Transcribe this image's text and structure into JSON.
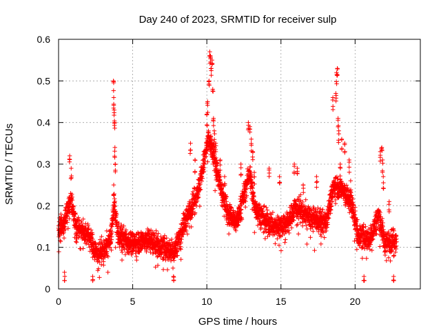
{
  "chart_data": {
    "type": "scatter",
    "title": "Day 240 of 2023, SRMTID for receiver sulp",
    "xlabel": "GPS time / hours",
    "ylabel": "SRMTID / TECUs",
    "xlim": [
      0,
      24.4
    ],
    "ylim": [
      0,
      0.6
    ],
    "xticks": [
      0,
      5,
      10,
      15,
      20
    ],
    "xtick_labels": [
      "0",
      "5",
      "10",
      "15",
      "20"
    ],
    "yticks": [
      0,
      0.1,
      0.2,
      0.3,
      0.4,
      0.5,
      0.6
    ],
    "ytick_labels": [
      "0",
      "0.1",
      "0.2",
      "0.3",
      "0.4",
      "0.5",
      "0.6"
    ],
    "grid": true,
    "marker": "+",
    "color": "#ff0000",
    "series": [
      {
        "name": "SRMTID",
        "envelope": [
          [
            0.0,
            0.14
          ],
          [
            0.5,
            0.17
          ],
          [
            0.8,
            0.22
          ],
          [
            1.2,
            0.15
          ],
          [
            2.0,
            0.13
          ],
          [
            2.5,
            0.09
          ],
          [
            3.0,
            0.09
          ],
          [
            3.5,
            0.12
          ],
          [
            3.75,
            0.2
          ],
          [
            4.0,
            0.13
          ],
          [
            5.0,
            0.11
          ],
          [
            6.0,
            0.12
          ],
          [
            7.0,
            0.1
          ],
          [
            7.8,
            0.09
          ],
          [
            8.5,
            0.16
          ],
          [
            9.0,
            0.2
          ],
          [
            9.5,
            0.25
          ],
          [
            10.1,
            0.36
          ],
          [
            10.5,
            0.32
          ],
          [
            11.0,
            0.23
          ],
          [
            11.5,
            0.18
          ],
          [
            12.0,
            0.16
          ],
          [
            12.9,
            0.28
          ],
          [
            13.2,
            0.2
          ],
          [
            13.8,
            0.17
          ],
          [
            14.5,
            0.15
          ],
          [
            15.5,
            0.16
          ],
          [
            16.0,
            0.2
          ],
          [
            17.0,
            0.17
          ],
          [
            18.0,
            0.16
          ],
          [
            18.6,
            0.25
          ],
          [
            19.2,
            0.24
          ],
          [
            19.8,
            0.2
          ],
          [
            20.2,
            0.13
          ],
          [
            21.0,
            0.12
          ],
          [
            21.6,
            0.18
          ],
          [
            22.0,
            0.11
          ],
          [
            22.8,
            0.12
          ]
        ],
        "spikes": [
          [
            0.1,
            0.14
          ],
          [
            0.75,
            0.32
          ],
          [
            0.85,
            0.29
          ],
          [
            3.7,
            0.5
          ],
          [
            3.72,
            0.46
          ],
          [
            3.75,
            0.43
          ],
          [
            3.78,
            0.4
          ],
          [
            3.8,
            0.34
          ],
          [
            3.82,
            0.3
          ],
          [
            3.72,
            0.25
          ],
          [
            8.9,
            0.35
          ],
          [
            9.2,
            0.31
          ],
          [
            10.0,
            0.42
          ],
          [
            10.05,
            0.45
          ],
          [
            10.15,
            0.5
          ],
          [
            10.2,
            0.57
          ],
          [
            10.25,
            0.56
          ],
          [
            10.3,
            0.53
          ],
          [
            10.35,
            0.55
          ],
          [
            10.4,
            0.48
          ],
          [
            10.45,
            0.41
          ],
          [
            10.5,
            0.38
          ],
          [
            10.6,
            0.35
          ],
          [
            10.9,
            0.31
          ],
          [
            11.2,
            0.27
          ],
          [
            12.3,
            0.3
          ],
          [
            12.8,
            0.4
          ],
          [
            12.9,
            0.39
          ],
          [
            13.0,
            0.36
          ],
          [
            13.1,
            0.33
          ],
          [
            13.2,
            0.28
          ],
          [
            14.2,
            0.29
          ],
          [
            14.9,
            0.27
          ],
          [
            15.9,
            0.3
          ],
          [
            16.1,
            0.29
          ],
          [
            16.5,
            0.25
          ],
          [
            17.4,
            0.27
          ],
          [
            18.5,
            0.46
          ],
          [
            18.7,
            0.47
          ],
          [
            18.75,
            0.52
          ],
          [
            18.8,
            0.53
          ],
          [
            18.85,
            0.41
          ],
          [
            18.9,
            0.38
          ],
          [
            19.0,
            0.3
          ],
          [
            19.1,
            0.36
          ],
          [
            19.3,
            0.35
          ],
          [
            19.6,
            0.31
          ],
          [
            19.7,
            0.26
          ],
          [
            21.7,
            0.33
          ],
          [
            21.8,
            0.34
          ],
          [
            21.85,
            0.31
          ],
          [
            21.9,
            0.27
          ],
          [
            22.3,
            0.21
          ],
          [
            22.6,
            0.03
          ],
          [
            2.3,
            0.03
          ],
          [
            7.75,
            0.03
          ],
          [
            20.6,
            0.03
          ],
          [
            0.4,
            0.04
          ]
        ]
      }
    ]
  }
}
